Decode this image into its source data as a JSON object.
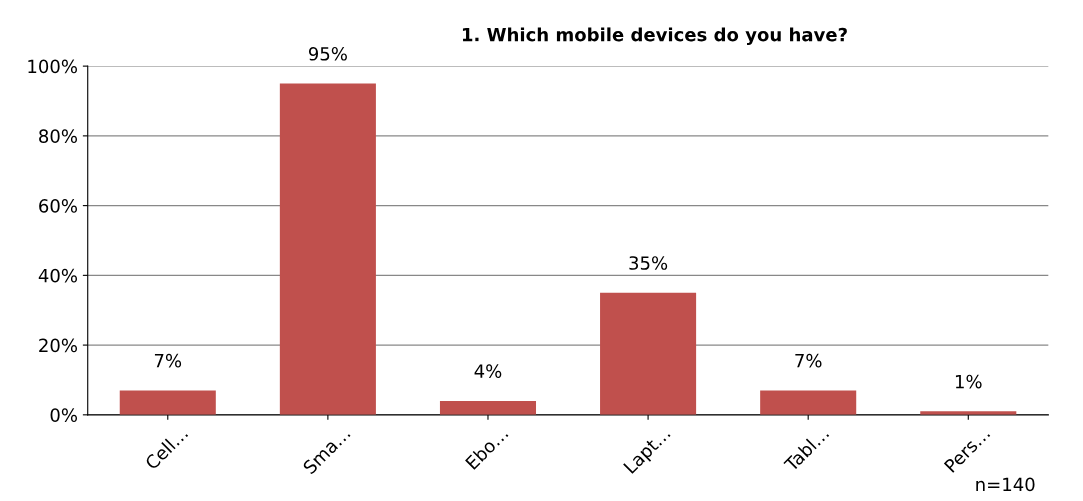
{
  "chart_data": {
    "type": "bar",
    "title": "1. Which mobile devices do you have?",
    "categories": [
      "Cell…",
      "Sma…",
      "Ebo…",
      "Lapt…",
      "Tabl…",
      "Pers…"
    ],
    "values": [
      7,
      95,
      4,
      35,
      7,
      1
    ],
    "value_labels": [
      "7%",
      "95%",
      "4%",
      "35%",
      "7%",
      "1%"
    ],
    "color": "#c0504d",
    "ylim": [
      0,
      100
    ],
    "yticks": [
      {
        "value": 0,
        "label": "0%"
      },
      {
        "value": 20,
        "label": "20%"
      },
      {
        "value": 40,
        "label": "40%"
      },
      {
        "value": 60,
        "label": "60%"
      },
      {
        "value": 80,
        "label": "80%"
      },
      {
        "value": 100,
        "label": "100%"
      }
    ],
    "grid": "y",
    "annotations": [
      "n=140"
    ]
  }
}
